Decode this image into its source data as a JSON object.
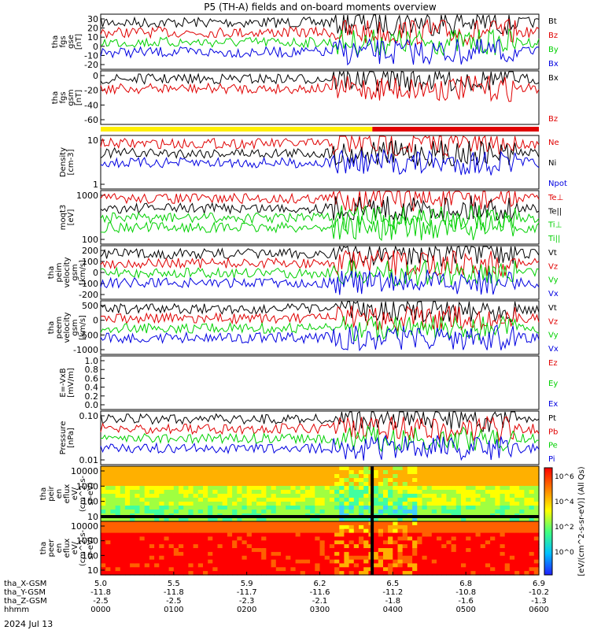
{
  "title": "P5 (TH-A) fields and on-board moments overview",
  "date_label": "2024 Jul 13",
  "colors": {
    "black": "#000000",
    "red": "#e00000",
    "green": "#00d000",
    "blue": "#0000e0",
    "yellow": "#ffee00"
  },
  "chart_data": [
    {
      "type": "line",
      "id": "fgs-gse",
      "ylabel": [
        "tha",
        "fgs",
        "gse",
        "[nT]"
      ],
      "yticks": [
        "30",
        "20",
        "10",
        "0",
        "-10",
        "-20"
      ],
      "ylim": [
        -28,
        36
      ],
      "legend": [
        {
          "name": "Bt",
          "color": "black"
        },
        {
          "name": "Bz",
          "color": "red"
        },
        {
          "name": "By",
          "color": "green"
        },
        {
          "name": "Bx",
          "color": "blue"
        }
      ]
    },
    {
      "type": "line",
      "id": "fgs-gsm",
      "ylabel": [
        "tha",
        "fgs",
        "gsm",
        "[nT]"
      ],
      "yticks": [
        "0",
        "-20",
        "-40",
        "-60"
      ],
      "ylim": [
        -68,
        8
      ],
      "legend": [
        {
          "name": "Bx",
          "color": "black"
        },
        {
          "name": "Bz",
          "color": "red"
        }
      ]
    },
    {
      "type": "line",
      "id": "density",
      "ylabel": [
        "Density",
        "[cm-3]"
      ],
      "yticks": [
        "10",
        "1"
      ],
      "yscale": "log",
      "ylim": [
        0.2,
        30
      ],
      "legend": [
        {
          "name": "Ne",
          "color": "red"
        },
        {
          "name": "Ni",
          "color": "black"
        },
        {
          "name": "Npot",
          "color": "blue"
        }
      ]
    },
    {
      "type": "line",
      "id": "temperature",
      "ylabel": [
        "moqt3",
        "[eV]"
      ],
      "yticks": [
        "1000",
        "100"
      ],
      "yscale": "log",
      "ylim": [
        50,
        6000
      ],
      "legend": [
        {
          "name": "Te⊥",
          "color": "red"
        },
        {
          "name": "Te||",
          "color": "black"
        },
        {
          "name": "Ti⊥",
          "color": "green"
        },
        {
          "name": "Ti||",
          "color": "green"
        }
      ]
    },
    {
      "type": "line",
      "id": "peim-velocity",
      "ylabel": [
        "tha",
        "peim",
        "velocity",
        "gsm",
        "[km/s]"
      ],
      "yticks": [
        "200",
        "100",
        "0",
        "-100",
        "-200"
      ],
      "ylim": [
        -230,
        260
      ],
      "legend": [
        {
          "name": "Vt",
          "color": "black"
        },
        {
          "name": "Vz",
          "color": "red"
        },
        {
          "name": "Vy",
          "color": "green"
        },
        {
          "name": "Vx",
          "color": "blue"
        }
      ]
    },
    {
      "type": "line",
      "id": "peem-velocity",
      "ylabel": [
        "tha",
        "peem",
        "velocity",
        "gsm",
        "[km/s]"
      ],
      "yticks": [
        "500",
        "0",
        "-500",
        "-1000"
      ],
      "ylim": [
        -1050,
        1100
      ],
      "legend": [
        {
          "name": "Vt",
          "color": "black"
        },
        {
          "name": "Vz",
          "color": "red"
        },
        {
          "name": "Vy",
          "color": "green"
        },
        {
          "name": "Vx",
          "color": "blue"
        }
      ]
    },
    {
      "type": "line",
      "id": "efield",
      "ylabel": [
        "E=-VxB",
        "[mV/m]"
      ],
      "yticks": [
        "1.0",
        "0.8",
        "0.6",
        "0.4",
        "0.2",
        "0.0"
      ],
      "ylim": [
        0,
        1
      ],
      "legend": [
        {
          "name": "Ez",
          "color": "red"
        },
        {
          "name": "Ey",
          "color": "green"
        },
        {
          "name": "Ex",
          "color": "blue"
        }
      ]
    },
    {
      "type": "line",
      "id": "pressure",
      "ylabel": [
        "Pressure",
        "[nPa]"
      ],
      "yticks": [
        "0.10",
        "0.01"
      ],
      "yscale": "log",
      "ylim": [
        0.008,
        1.2
      ],
      "legend": [
        {
          "name": "Pt",
          "color": "black"
        },
        {
          "name": "Pb",
          "color": "red"
        },
        {
          "name": "Pe",
          "color": "green"
        },
        {
          "name": "Pi",
          "color": "blue"
        }
      ]
    },
    {
      "type": "heatmap",
      "id": "peir-eflux",
      "ylabel": [
        "tha",
        "peir",
        "en",
        "eflux",
        "eV/",
        "(cm^2-s-",
        "sr-eV)"
      ],
      "yticks": [
        "10000",
        "1000",
        "100",
        "10"
      ],
      "yscale": "log",
      "ylim": [
        5,
        30000
      ]
    },
    {
      "type": "heatmap",
      "id": "peer-eflux",
      "ylabel": [
        "tha",
        "peer",
        "en",
        "eflux",
        "eV/",
        "(cm^2-s-",
        "sr-eV)"
      ],
      "yticks": [
        "10000",
        "1000",
        "100",
        "10"
      ],
      "yscale": "log",
      "ylim": [
        5,
        30000
      ]
    }
  ],
  "colorbar": {
    "label": "[eV/(cm^2-s-sr-eV)] (All Qs)",
    "ticks": [
      "10^6",
      "10^4",
      "10^2",
      "10^0"
    ]
  },
  "xaxis": {
    "rows": [
      {
        "label": "tha_X-GSM",
        "values": [
          "5.0",
          "5.5",
          "5.9",
          "6.2",
          "6.5",
          "6.8",
          "6.9"
        ]
      },
      {
        "label": "tha_Y-GSM",
        "values": [
          "-11.8",
          "-11.8",
          "-11.7",
          "-11.6",
          "-11.2",
          "-10.8",
          "-10.2"
        ]
      },
      {
        "label": "tha_Z-GSM",
        "values": [
          "-2.5",
          "-2.5",
          "-2.3",
          "-2.1",
          "-1.8",
          "-1.6",
          "-1.3"
        ]
      },
      {
        "label": "hhmm",
        "values": [
          "0000",
          "0100",
          "0200",
          "0300",
          "0400",
          "0500",
          "0600"
        ]
      }
    ]
  }
}
